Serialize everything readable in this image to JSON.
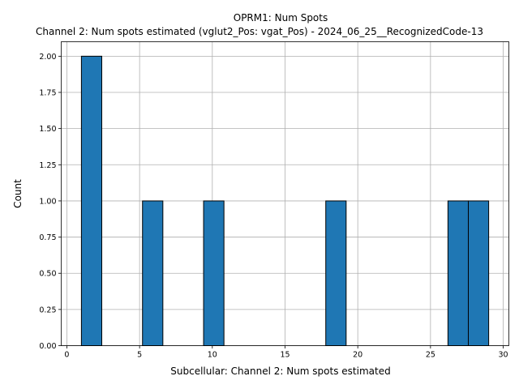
{
  "chart_data": {
    "type": "bar",
    "title": "OPRM1: Num Spots",
    "subtitle": "Channel 2: Num spots estimated (vglut2_Pos: vgat_Pos) - 2024_06_25__RecognizedCode-13",
    "xlabel": "Subcellular: Channel 2: Num spots estimated",
    "ylabel": "Count",
    "xlim": [
      -0.3875,
      30.3875
    ],
    "ylim": [
      0,
      2.1
    ],
    "grid": true,
    "bar_color": "#1f77b4",
    "edge_color": "#000000",
    "x_ticks": [
      0,
      5,
      10,
      15,
      20,
      25,
      30
    ],
    "x_tick_labels": [
      "0",
      "5",
      "10",
      "15",
      "20",
      "25",
      "30"
    ],
    "y_ticks": [
      0,
      0.25,
      0.5,
      0.75,
      1.0,
      1.25,
      1.5,
      1.75,
      2.0
    ],
    "y_tick_labels": [
      "0.00",
      "0.25",
      "0.50",
      "0.75",
      "1.00",
      "1.25",
      "1.50",
      "1.75",
      "2.00"
    ],
    "bins": [
      {
        "x0": 1.0,
        "x1": 2.4,
        "count": 2
      },
      {
        "x0": 5.2,
        "x1": 6.6,
        "count": 1
      },
      {
        "x0": 9.4,
        "x1": 10.8,
        "count": 1
      },
      {
        "x0": 17.8,
        "x1": 19.2,
        "count": 1
      },
      {
        "x0": 26.2,
        "x1": 27.6,
        "count": 1
      },
      {
        "x0": 27.6,
        "x1": 29.0,
        "count": 1
      }
    ]
  }
}
